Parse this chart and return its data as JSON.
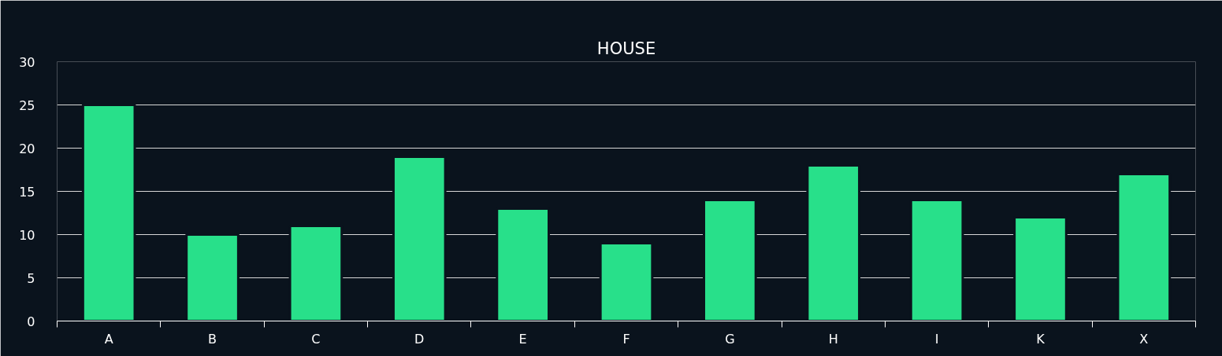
{
  "chart_data": {
    "type": "bar",
    "title": "HOUSE",
    "categories": [
      "A",
      "B",
      "C",
      "D",
      "E",
      "F",
      "G",
      "H",
      "I",
      "K",
      "X"
    ],
    "values": [
      25,
      10,
      11,
      19,
      13,
      9,
      14,
      18,
      14,
      12,
      17
    ],
    "color": "#28e08a",
    "ylim": [
      0,
      30
    ],
    "yticks": [
      0,
      5,
      10,
      15,
      20,
      25,
      30
    ],
    "grid": "y"
  }
}
